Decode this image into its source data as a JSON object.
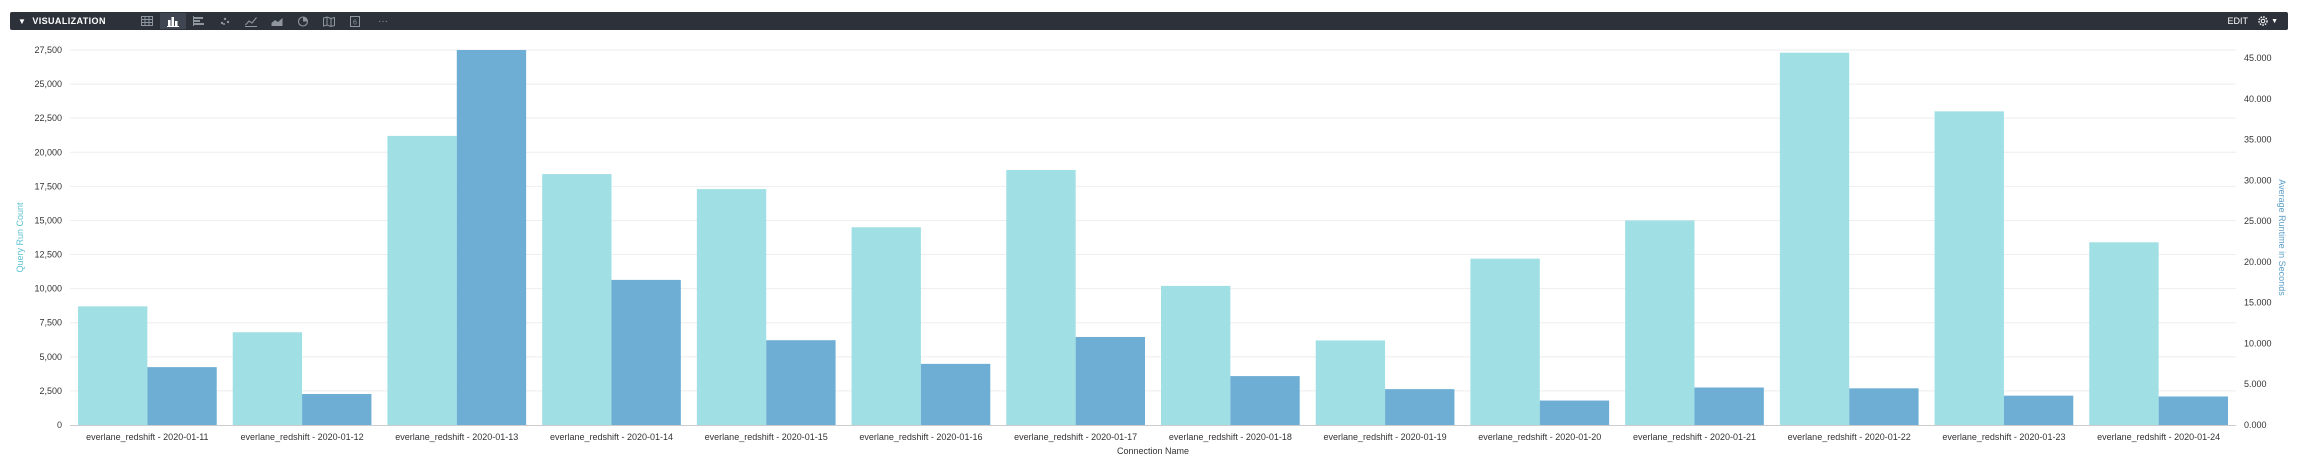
{
  "header": {
    "title": "VISUALIZATION",
    "edit_label": "EDIT",
    "more_label": "···",
    "viz_types": [
      {
        "icon": "table-icon",
        "active": false
      },
      {
        "icon": "column-chart-icon",
        "active": true
      },
      {
        "icon": "bar-chart-icon",
        "active": false
      },
      {
        "icon": "scatter-chart-icon",
        "active": false
      },
      {
        "icon": "line-chart-icon",
        "active": false
      },
      {
        "icon": "area-chart-icon",
        "active": false
      },
      {
        "icon": "pie-chart-icon",
        "active": false
      },
      {
        "icon": "map-icon",
        "active": false
      },
      {
        "icon": "single-value-icon",
        "active": false
      }
    ],
    "settings_icon": "gear-icon"
  },
  "colors": {
    "series1": "#a0dfe3",
    "series2": "#6eaed4",
    "left_axis_title": "#5bc2d0",
    "right_axis_title": "#5b9fc9",
    "grid": "#eeeeee",
    "topbar": "#2c313a"
  },
  "chart_data": {
    "type": "bar",
    "xlabel": "Connection Name",
    "ylabel_left": "Query Run Count",
    "ylabel_right": "Average Runtime in Seconds",
    "ylim_left": [
      0,
      27500
    ],
    "ylim_right": [
      0,
      46000
    ],
    "yticks_left": [
      "0",
      "2,500",
      "5,000",
      "7,500",
      "10,000",
      "12,500",
      "15,000",
      "17,500",
      "20,000",
      "22,500",
      "25,000",
      "27,500"
    ],
    "yticks_right": [
      "0.000",
      "5.000",
      "10.000",
      "15.000",
      "20.000",
      "25.000",
      "30.000",
      "35.000",
      "40.000",
      "45.000"
    ],
    "yticks_left_values": [
      0,
      2500,
      5000,
      7500,
      10000,
      12500,
      15000,
      17500,
      20000,
      22500,
      25000,
      27500
    ],
    "yticks_right_values": [
      0,
      5000,
      10000,
      15000,
      20000,
      25000,
      30000,
      35000,
      40000,
      45000
    ],
    "grid": true,
    "categories": [
      "everlane_redshift - 2020-01-11",
      "everlane_redshift - 2020-01-12",
      "everlane_redshift - 2020-01-13",
      "everlane_redshift - 2020-01-14",
      "everlane_redshift - 2020-01-15",
      "everlane_redshift - 2020-01-16",
      "everlane_redshift - 2020-01-17",
      "everlane_redshift - 2020-01-18",
      "everlane_redshift - 2020-01-19",
      "everlane_redshift - 2020-01-20",
      "everlane_redshift - 2020-01-21",
      "everlane_redshift - 2020-01-22",
      "everlane_redshift - 2020-01-23",
      "everlane_redshift - 2020-01-24"
    ],
    "series": [
      {
        "name": "Query Run Count",
        "axis": "left",
        "values": [
          8700,
          6800,
          21200,
          18400,
          17300,
          14500,
          18700,
          10200,
          6200,
          12200,
          15000,
          27300,
          23000,
          13400
        ]
      },
      {
        "name": "Average Runtime in Seconds",
        "axis": "right",
        "values": [
          7100,
          3800,
          46500,
          17800,
          10400,
          7500,
          10800,
          6000,
          4400,
          3000,
          4600,
          4500,
          3600,
          3500
        ]
      }
    ]
  }
}
